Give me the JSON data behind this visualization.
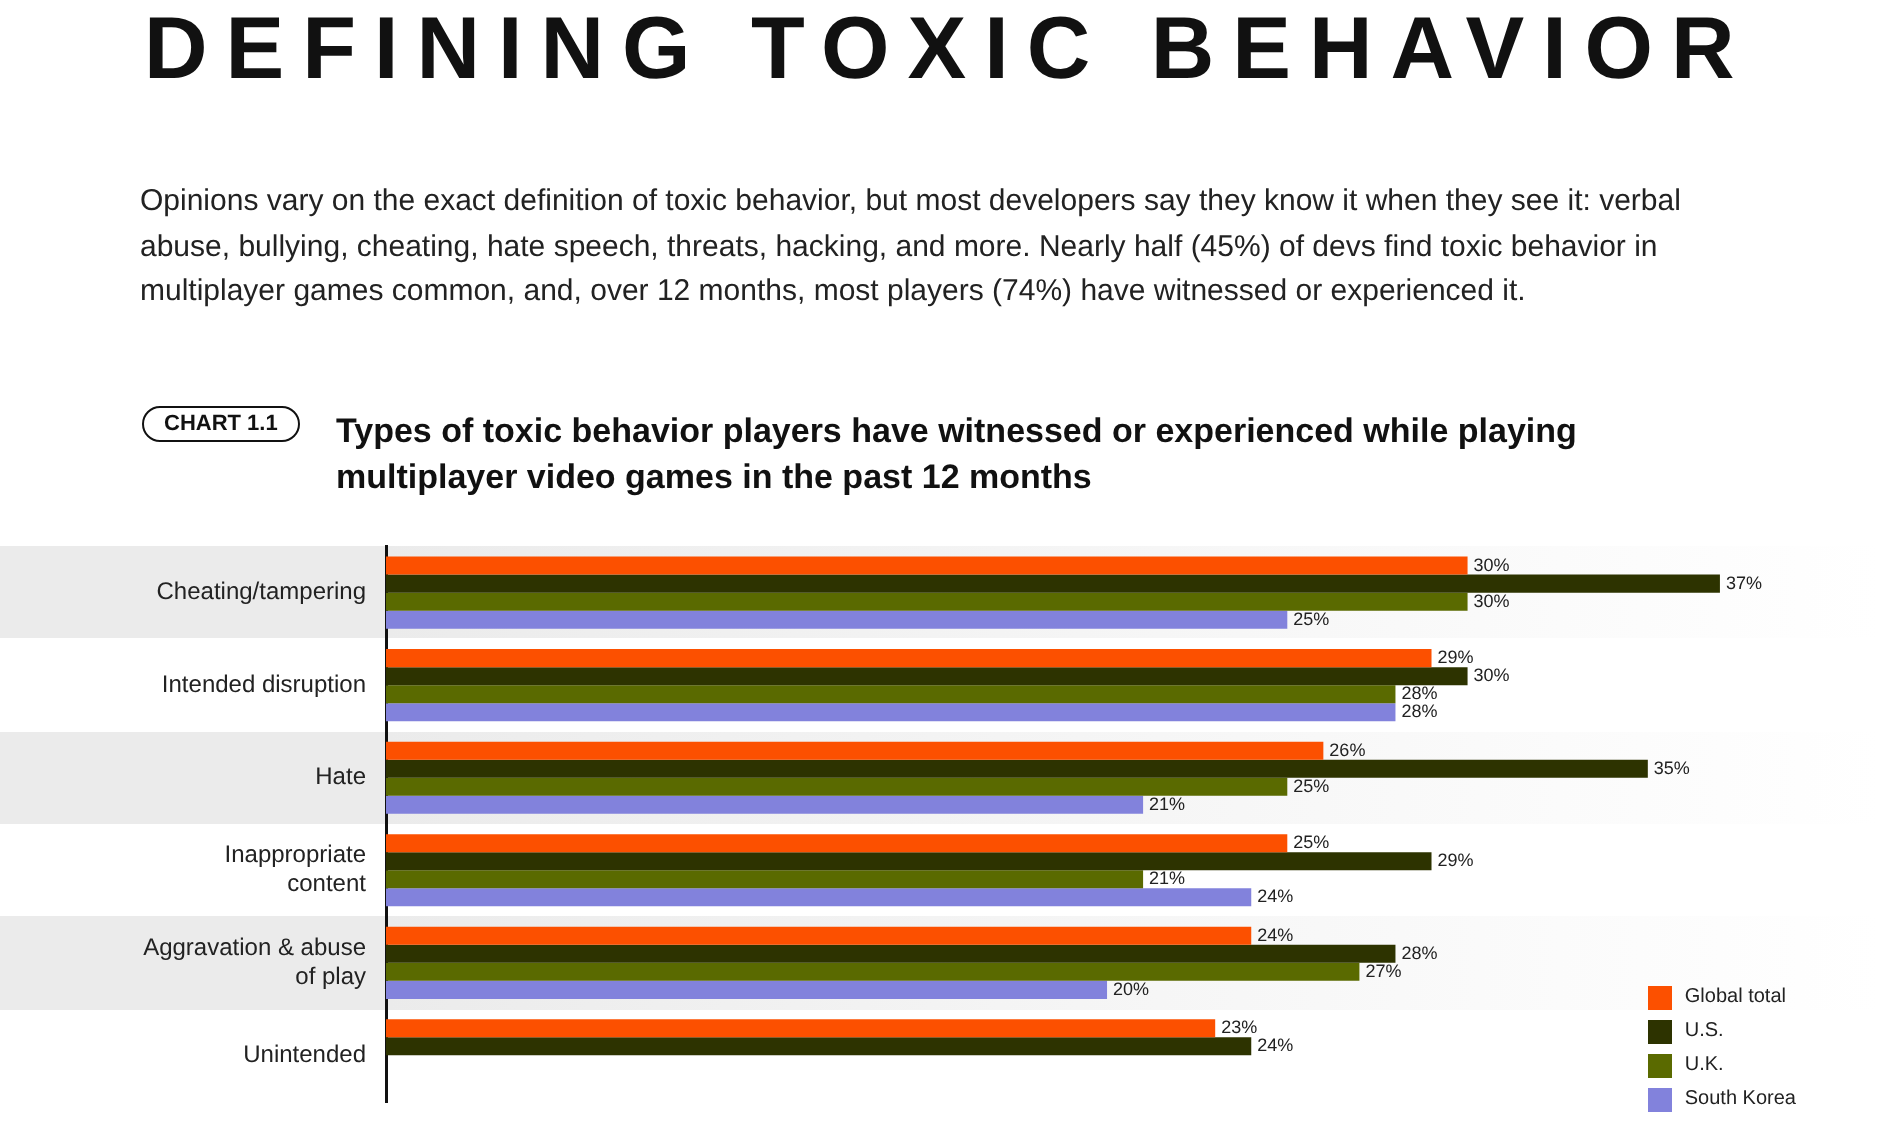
{
  "chart_data": {
    "type": "bar",
    "orientation": "horizontal",
    "title": "Types of toxic behavior players have witnessed or experienced while playing multiplayer video games in the past 12 months",
    "annotations": [
      "DEFINING TOXIC BEHAVIOR",
      "Opinions vary on the exact definition of toxic behavior, but most developers say they know it when they see it: verbal abuse, bullying, cheating, hate speech, threats, hacking, and more. Nearly half (45%) of devs find toxic behavior in multiplayer games common, and, over 12 months, most players (74%) have witnessed or experienced it.",
      "CHART 1.1"
    ],
    "categories": [
      "Cheating/tampering",
      "Intended disruption",
      "Hate",
      "Inappropriate content",
      "Aggravation & abuse of play",
      "Unintended"
    ],
    "series": [
      {
        "name": "Global total",
        "color": "#fc5000",
        "values": [
          30,
          29,
          26,
          25,
          24,
          23
        ],
        "value_labels": [
          "30%",
          "29%",
          "26%",
          "25%",
          "24%",
          "23%"
        ]
      },
      {
        "name": "U.S.",
        "color": "#2d3300",
        "values": [
          37,
          30,
          35,
          29,
          28,
          24
        ],
        "value_labels": [
          "37%",
          "30%",
          "35%",
          "29%",
          "28%",
          "24%"
        ]
      },
      {
        "name": "U.K.",
        "color": "#5a6a00",
        "values": [
          30,
          28,
          25,
          21,
          27,
          null
        ],
        "value_labels": [
          "30%",
          "28%",
          "25%",
          "21%",
          "27%",
          null
        ]
      },
      {
        "name": "South Korea",
        "color": "#8282dc",
        "values": [
          25,
          28,
          21,
          24,
          20,
          null
        ],
        "value_labels": [
          "25%",
          "28%",
          "21%",
          "24%",
          "20%",
          null
        ]
      }
    ],
    "legend": "bottom right",
    "grid": false
  }
}
